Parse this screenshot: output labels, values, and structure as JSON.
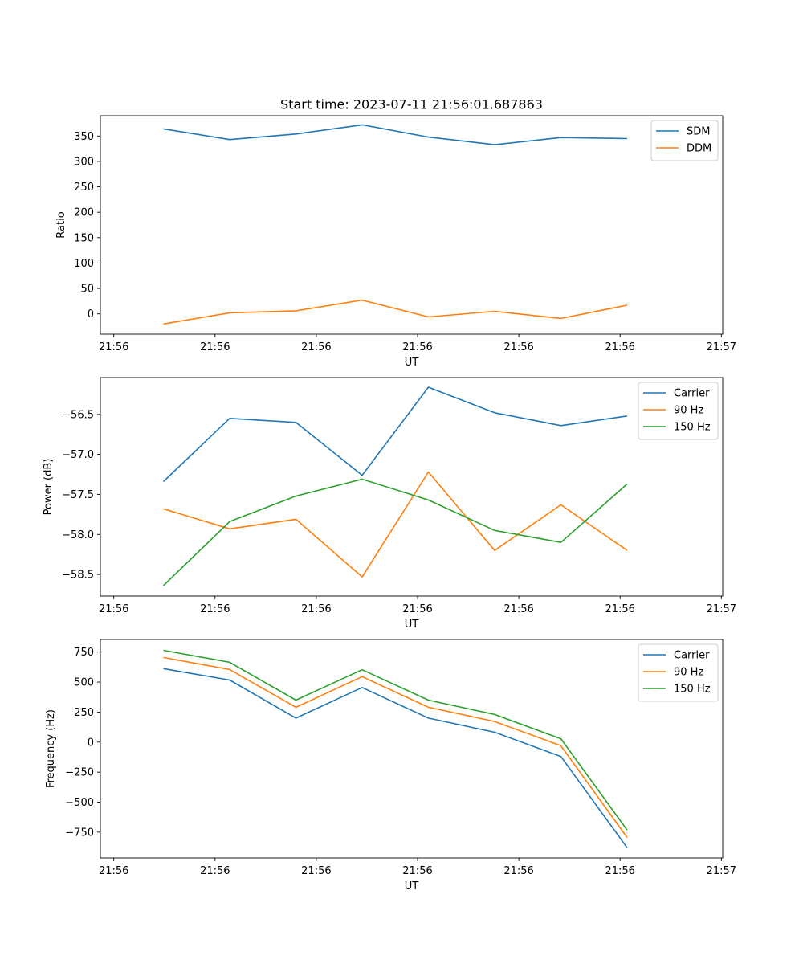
{
  "chart_data": [
    {
      "type": "line",
      "title": "Start time: 2023-07-11 21:56:01.687863",
      "xlabel": "UT",
      "ylabel": "Ratio",
      "x_tick_labels": [
        "21:56",
        "21:56",
        "21:56",
        "21:56",
        "21:56",
        "21:56",
        "21:57"
      ],
      "ylim": [
        -40,
        390
      ],
      "yticks": [
        0,
        50,
        100,
        150,
        200,
        250,
        300,
        350
      ],
      "grid": false,
      "legend": "top-right",
      "series": [
        {
          "name": "SDM",
          "color": "#1f77b4",
          "values": [
            364,
            343,
            354,
            372,
            348,
            333,
            347,
            345
          ]
        },
        {
          "name": "DDM",
          "color": "#ff7f0e",
          "values": [
            -20,
            2,
            6,
            27,
            -6,
            5,
            -9,
            17
          ]
        }
      ]
    },
    {
      "type": "line",
      "title": "",
      "xlabel": "UT",
      "ylabel": "Power (dB)",
      "x_tick_labels": [
        "21:56",
        "21:56",
        "21:56",
        "21:56",
        "21:56",
        "21:56",
        "21:57"
      ],
      "ylim": [
        -58.77,
        -56.04
      ],
      "yticks": [
        -58.5,
        -58.0,
        -57.5,
        -57.0,
        -56.5
      ],
      "ytick_labels": [
        "−58.5",
        "−58.0",
        "−57.5",
        "−57.0",
        "−56.5"
      ],
      "grid": false,
      "legend": "top-right",
      "series": [
        {
          "name": "Carrier",
          "color": "#1f77b4",
          "values": [
            -57.34,
            -56.55,
            -56.6,
            -57.26,
            -56.16,
            -56.48,
            -56.64,
            -56.52
          ]
        },
        {
          "name": "90 Hz",
          "color": "#ff7f0e",
          "values": [
            -57.68,
            -57.93,
            -57.81,
            -58.53,
            -57.22,
            -58.2,
            -57.63,
            -58.2
          ]
        },
        {
          "name": "150 Hz",
          "color": "#2ca02c",
          "values": [
            -58.64,
            -57.84,
            -57.52,
            -57.31,
            -57.57,
            -57.95,
            -58.1,
            -57.37
          ]
        }
      ]
    },
    {
      "type": "line",
      "title": "",
      "xlabel": "UT",
      "ylabel": "Frequency (Hz)",
      "x_tick_labels": [
        "21:56",
        "21:56",
        "21:56",
        "21:56",
        "21:56",
        "21:56",
        "21:57"
      ],
      "ylim": [
        -965,
        855
      ],
      "yticks": [
        -750,
        -500,
        -250,
        0,
        250,
        500,
        750
      ],
      "ytick_labels": [
        "−750",
        "−500",
        "−250",
        "0",
        "250",
        "500",
        "750"
      ],
      "grid": false,
      "legend": "top-right",
      "series": [
        {
          "name": "Carrier",
          "color": "#1f77b4",
          "values": [
            612,
            517,
            200,
            455,
            200,
            82,
            -120,
            -880
          ]
        },
        {
          "name": "90 Hz",
          "color": "#ff7f0e",
          "values": [
            705,
            605,
            290,
            545,
            290,
            172,
            -30,
            -795
          ]
        },
        {
          "name": "150 Hz",
          "color": "#2ca02c",
          "values": [
            765,
            665,
            350,
            603,
            350,
            230,
            28,
            -733
          ]
        }
      ]
    }
  ]
}
